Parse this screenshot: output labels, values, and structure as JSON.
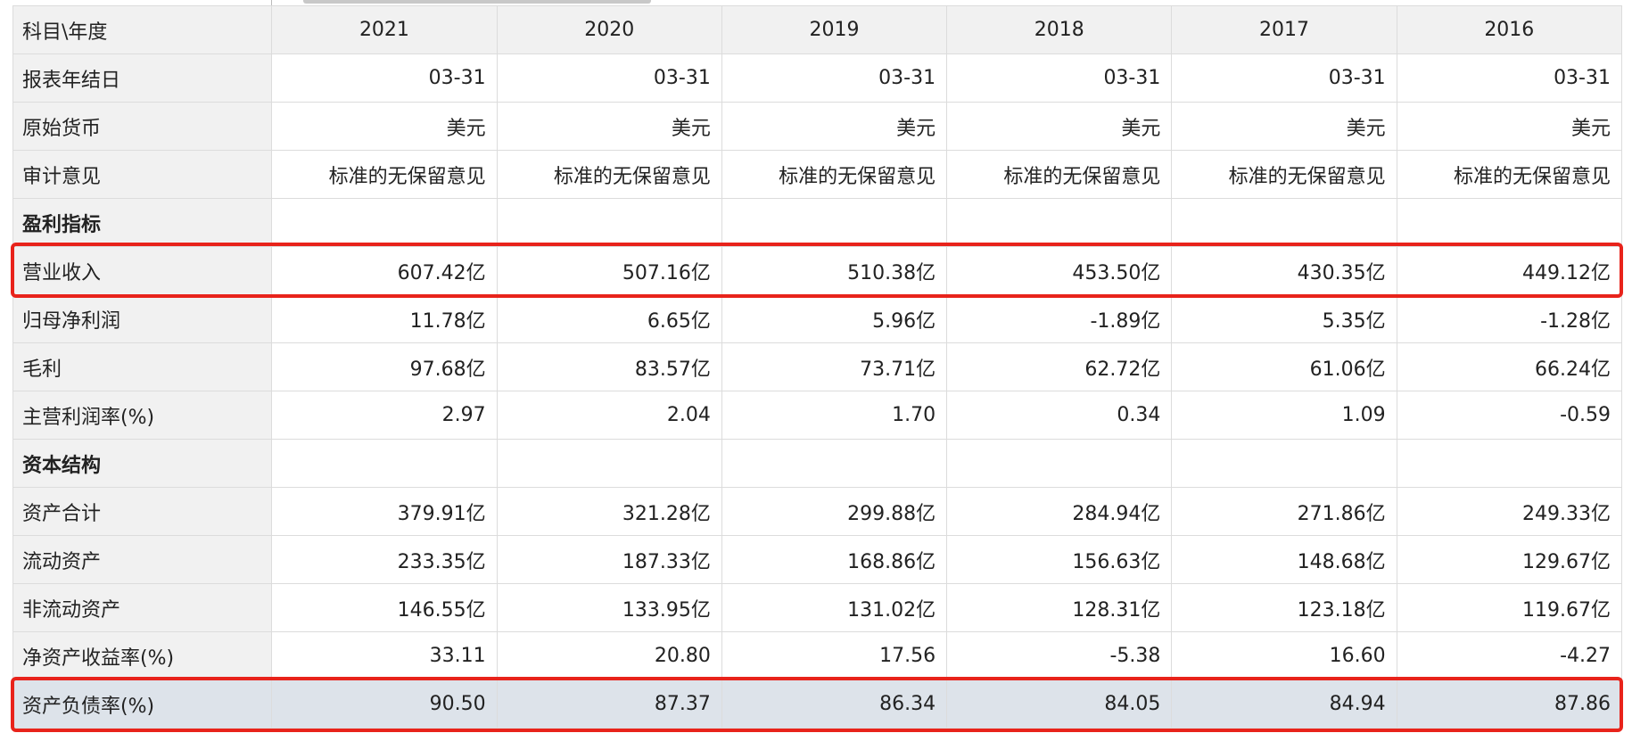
{
  "header": {
    "label": "科目\\年度",
    "years": [
      "2021",
      "2020",
      "2019",
      "2018",
      "2017",
      "2016"
    ]
  },
  "rows": [
    {
      "label": "报表年结日",
      "values": [
        "03-31",
        "03-31",
        "03-31",
        "03-31",
        "03-31",
        "03-31"
      ]
    },
    {
      "label": "原始货币",
      "values": [
        "美元",
        "美元",
        "美元",
        "美元",
        "美元",
        "美元"
      ]
    },
    {
      "label": "审计意见",
      "values": [
        "标准的无保留意见",
        "标准的无保留意见",
        "标准的无保留意见",
        "标准的无保留意见",
        "标准的无保留意见",
        "标准的无保留意见"
      ]
    },
    {
      "label": "盈利指标",
      "values": [
        "",
        "",
        "",
        "",
        "",
        ""
      ]
    },
    {
      "label": "营业收入",
      "values": [
        "607.42亿",
        "507.16亿",
        "510.38亿",
        "453.50亿",
        "430.35亿",
        "449.12亿"
      ]
    },
    {
      "label": "归母净利润",
      "values": [
        "11.78亿",
        "6.65亿",
        "5.96亿",
        "-1.89亿",
        "5.35亿",
        "-1.28亿"
      ]
    },
    {
      "label": "毛利",
      "values": [
        "97.68亿",
        "83.57亿",
        "73.71亿",
        "62.72亿",
        "61.06亿",
        "66.24亿"
      ]
    },
    {
      "label": "主营利润率(%)",
      "values": [
        "2.97",
        "2.04",
        "1.70",
        "0.34",
        "1.09",
        "-0.59"
      ]
    },
    {
      "label": "资本结构",
      "values": [
        "",
        "",
        "",
        "",
        "",
        ""
      ]
    },
    {
      "label": "资产合计",
      "values": [
        "379.91亿",
        "321.28亿",
        "299.88亿",
        "284.94亿",
        "271.86亿",
        "249.33亿"
      ]
    },
    {
      "label": "流动资产",
      "values": [
        "233.35亿",
        "187.33亿",
        "168.86亿",
        "156.63亿",
        "148.68亿",
        "129.67亿"
      ]
    },
    {
      "label": "非流动资产",
      "values": [
        "146.55亿",
        "133.95亿",
        "131.02亿",
        "128.31亿",
        "123.18亿",
        "119.67亿"
      ]
    },
    {
      "label": "净资产收益率(%)",
      "values": [
        "33.11",
        "20.80",
        "17.56",
        "-5.38",
        "16.60",
        "-4.27"
      ]
    },
    {
      "label": "资产负债率(%)",
      "values": [
        "90.50",
        "87.37",
        "86.34",
        "84.05",
        "84.94",
        "87.86"
      ]
    }
  ],
  "colors": {
    "highlight_border": "#e8231b",
    "label_bg": "#f1f1f1",
    "selected_row_bg": "#dde3ea"
  }
}
